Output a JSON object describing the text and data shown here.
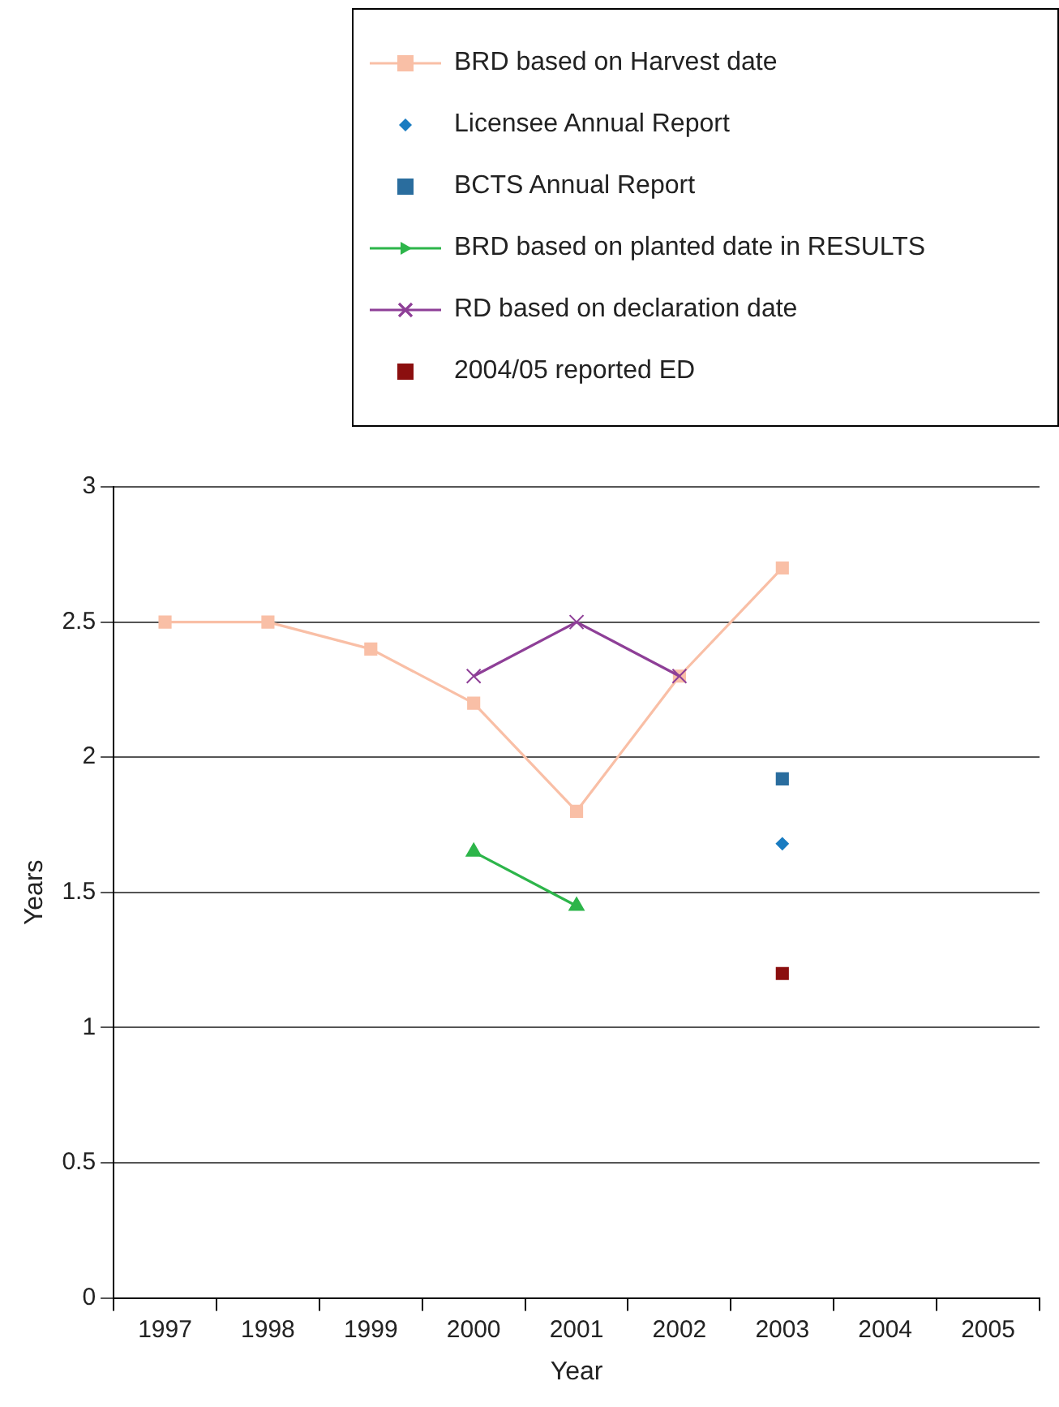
{
  "chart_data": {
    "type": "line",
    "xlabel": "Year",
    "ylabel": "Years",
    "categories": [
      "1997",
      "1998",
      "1999",
      "2000",
      "2001",
      "2002",
      "2003",
      "2004",
      "2005"
    ],
    "series": [
      {
        "name": "BRD based on Harvest date",
        "type": "line",
        "marker": "square",
        "color": "#f9bfa6",
        "values": [
          2.5,
          2.5,
          2.4,
          2.2,
          1.8,
          2.3,
          2.7,
          null,
          null
        ]
      },
      {
        "name": "Licensee Annual Report",
        "type": "scatter",
        "marker": "diamond",
        "color": "#1a7cc1",
        "values": [
          null,
          null,
          null,
          null,
          null,
          null,
          1.68,
          null,
          null
        ]
      },
      {
        "name": "BCTS Annual Report",
        "type": "scatter",
        "marker": "square",
        "color": "#2a6d9e",
        "values": [
          null,
          null,
          null,
          null,
          null,
          null,
          1.92,
          null,
          null
        ]
      },
      {
        "name": "BRD based on planted date in RESULTS",
        "type": "line",
        "marker": "triangle",
        "color": "#2db54a",
        "values": [
          null,
          null,
          null,
          1.65,
          1.45,
          null,
          null,
          null,
          null
        ]
      },
      {
        "name": "RD based on declaration date",
        "type": "line",
        "marker": "cross",
        "color": "#8e3f97",
        "values": [
          null,
          null,
          null,
          2.3,
          2.5,
          2.3,
          null,
          null,
          null
        ]
      },
      {
        "name": "2004/05 reported ED",
        "type": "scatter",
        "marker": "square",
        "color": "#8b0f0f",
        "values": [
          null,
          null,
          null,
          null,
          null,
          null,
          1.2,
          null,
          null
        ]
      }
    ],
    "ylim": [
      0,
      3
    ],
    "yticks": [
      0,
      0.5,
      1,
      1.5,
      2,
      2.5,
      3
    ],
    "grid": "y",
    "legend": "top right"
  }
}
